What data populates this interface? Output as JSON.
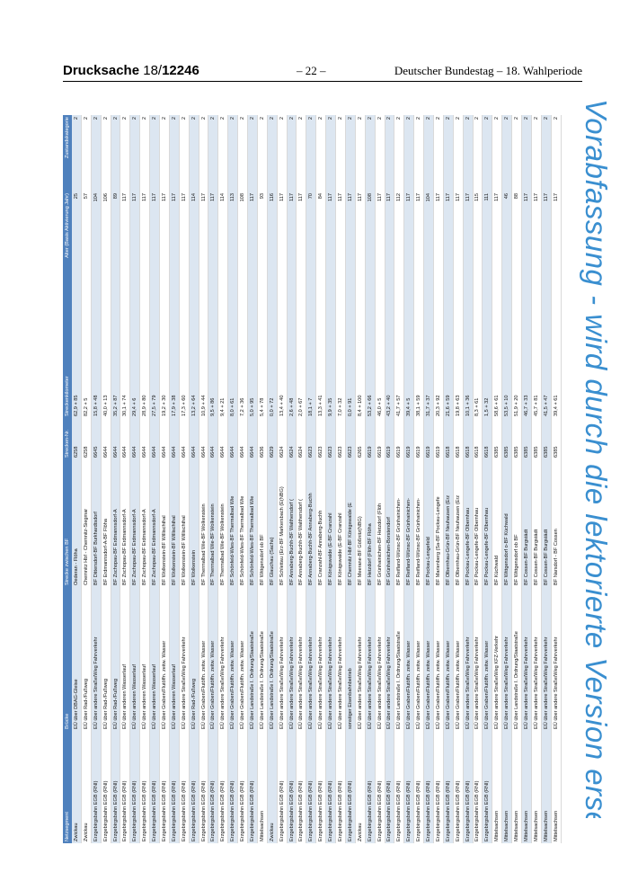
{
  "header": {
    "doc_label": "Drucksache",
    "doc_number_prefix": "18/",
    "doc_number": "12246",
    "page": "– 22 –",
    "institution": "Deutscher Bundestag – 18. Wahlperiode"
  },
  "watermark": "Vorabfassung - wird durch die lektorierte Version ersetzt.",
  "table": {
    "columns": [
      "Netzsegment",
      "Brücke",
      "Strecke zwischen BF",
      "Strecken-Nr.",
      "Streckenkilometer",
      "Alter (Basis Aktivierung Jahr)",
      "Zustandskategorie"
    ],
    "rows": [
      [
        "Zwickau",
        "EÜ über DBAG-Gleise",
        "Oederan - Flöha",
        "6258",
        "62,9 + 85",
        "25",
        "2"
      ],
      [
        "Zwickau",
        "EÜ über Rad-/Fußweg",
        "Chemnitz Hbf - Chemnitz-Siegmar",
        "6258",
        "82,2 + 5",
        "57",
        "2"
      ],
      [
        "Erzgebirgsbahn EGB (RNI)",
        "EÜ über andere Straße/Weg Fahrverkehr",
        "BF Dittersdorf-BF Burkhardtsdorf",
        "6645",
        "15,8 + 48",
        "104",
        "2"
      ],
      [
        "Erzgebirgsbahn EGB (RNI)",
        "EÜ über Rad-/Fußweg",
        "BF Erdmannsdorf-A-BF Flöha",
        "6644",
        "40,0 + 13",
        "106",
        "2"
      ],
      [
        "Erzgebirgsbahn EGB (RNI)",
        "EÜ über Rad-/Fußweg",
        "BF Zschopau-BF Erdmannsdorf-A",
        "6644",
        "35,2 + 87",
        "89",
        "2"
      ],
      [
        "Erzgebirgsbahn EGB (RNI)",
        "EÜ über anderen Wasserlauf",
        "BF Zschopau-BF Erdmannsdorf-A",
        "6644",
        "30,1 + 74",
        "117",
        "2"
      ],
      [
        "Erzgebirgsbahn EGB (RNI)",
        "EÜ über anderen Wasserlauf",
        "BF Zschopau-BF Erdmannsdorf-A",
        "6644",
        "29,4 + 6",
        "117",
        "2"
      ],
      [
        "Erzgebirgsbahn EGB (RNI)",
        "EÜ über anderen Wasserlauf",
        "BF Zschopau-BF Erdmannsdorf-A",
        "6644",
        "28,9 + 80",
        "117",
        "2"
      ],
      [
        "Erzgebirgsbahn EGB (RNI)",
        "EÜ über anderen Wasserlauf",
        "BF Zschopau-BF Erdmannsdorf-A",
        "6644",
        "27,5 + 79",
        "117",
        "2"
      ],
      [
        "Erzgebirgsbahn EGB (RNI)",
        "EÜ über Graben/Flutöffn. zeitw. Wasser",
        "BF Wolkenstein-BF Willischthal",
        "6644",
        "19,2 + 30",
        "117",
        "2"
      ],
      [
        "Erzgebirgsbahn EGB (RNI)",
        "EÜ über anderen Wasserlauf",
        "BF Wolkenstein-BF Willischthal",
        "6644",
        "17,9 + 38",
        "117",
        "2"
      ],
      [
        "Erzgebirgsbahn EGB (RNI)",
        "EÜ über andere Straße/Weg Fahrverkehr",
        "BF Wolkenstein-BF Willischthal",
        "6644",
        "17,3 + 60",
        "117",
        "2"
      ],
      [
        "Erzgebirgsbahn EGB (RNI)",
        "EÜ über Rad-/Fußweg",
        "BF Wolkenstein",
        "6644",
        "13,2 + 64",
        "114",
        "2"
      ],
      [
        "Erzgebirgsbahn EGB (RNI)",
        "EÜ über Graben/Flutöffn. zeitw. Wasser",
        "BF Thermalbad Wie-BF Wolkenstein",
        "6644",
        "10,9 + 44",
        "117",
        "2"
      ],
      [
        "Erzgebirgsbahn EGB (RNI)",
        "EÜ über Graben/Flutöffn. zeitw. Wasser",
        "BF Thermalbad Wie-BF Wolkenstein",
        "6644",
        "9,5 + 86",
        "117",
        "2"
      ],
      [
        "Erzgebirgsbahn EGB (RNI)",
        "EÜ über andere Straße/Weg Fahrverkehr",
        "BF Thermalbad Wie-BF Wolkenstein",
        "6644",
        "9,4 + 21",
        "114",
        "2"
      ],
      [
        "Erzgebirgsbahn EGB (RNI)",
        "EÜ über Graben/Flutöffn. zeitw. Wasser",
        "BF Schönfeld-Wies-BF Thermalbad Wie",
        "6644",
        "8,0 + 61",
        "113",
        "2"
      ],
      [
        "Erzgebirgsbahn EGB (RNI)",
        "EÜ über Graben/Flutöffn. zeitw. Wasser",
        "BF Schönfeld-Wies-BF Thermalbad Wie",
        "6644",
        "7,2 + 36",
        "108",
        "2"
      ],
      [
        "Erzgebirgsbahn EGB (RNI)",
        "EÜ über Landstraße I. Ordnung/Staatstraße",
        "BF Schönfeld-Wies-BF Thermalbad Wie",
        "6644",
        "5,0 + 95",
        "117",
        "2"
      ],
      [
        "Mittelsachsen",
        "EÜ über Landstraße I. Ordnung/Staatstraße",
        "BF Wittgensdorf ob BF",
        "6636",
        "5,4 + 78",
        "93",
        "2"
      ],
      [
        "Zwickau",
        "EÜ über Landstraße I. Ordnung/Staatstraße",
        "BF Glauchau (Sachs)",
        "6629",
        "0,0 + 72",
        "116",
        "2"
      ],
      [
        "Erzgebirgsbahn EGB (RNI)",
        "EÜ über andere Straße/Weg Fahrverkehr",
        "BF Schlettau (Erz-BF Markersbach (E(NBG)",
        "6624",
        "13,4 + 40",
        "117",
        "2"
      ],
      [
        "Erzgebirgsbahn EGB (RNI)",
        "EÜ über andere Straße/Weg Fahrverkehr",
        "BF Annaberg-Buchh-BF Walthersdorf (",
        "6624",
        "2,6 + 48",
        "117",
        "2"
      ],
      [
        "Erzgebirgsbahn EGB (RNI)",
        "EÜ über andere Straße/Weg Fahrverkehr",
        "BF Annaberg-Buchh-BF Walthersdorf (",
        "6624",
        "2,0 + 67",
        "117",
        "2"
      ],
      [
        "Erzgebirgsbahn EGB (RNI)",
        "EÜ über andere Straße/Weg Fahrverkehr",
        "BF Annaberg-Buchh-BF Annaberg-Buchh",
        "6623",
        "18,1 + 7",
        "70",
        "2"
      ],
      [
        "Erzgebirgsbahn EGB (RNI)",
        "EÜ über andere Straße/Weg Fahrverkehr",
        "BF Cranzahl-BF Annaberg-Buchh",
        "6623",
        "13,3 + 41",
        "84",
        "2"
      ],
      [
        "Erzgebirgsbahn EGB (RNI)",
        "EÜ über andere Straße/Weg Fahrverkehr",
        "BF Königswalde (E-BF Cranzahl",
        "6623",
        "9,9 + 35",
        "117",
        "2"
      ],
      [
        "Erzgebirgsbahn EGB (RNI)",
        "EÜ über andere Straße/Weg Fahrverkehr",
        "BF Königswalde (E-BF Cranzahl",
        "6623",
        "7,0 + 32",
        "117",
        "2"
      ],
      [
        "Erzgebirgsbahn EGB (RNI)",
        "sonstiger Eisenbahnbetrieb",
        "BF Chemnitz Hbf-BF Königswalde (E",
        "6623",
        "0,0 + 91",
        "117",
        "2"
      ],
      [
        "Zwickau",
        "EÜ über andere Straße/Weg Fahrverkehr",
        "BF Meerane-BF Gößnitz(NBG)",
        "6265",
        "8,4 + 100",
        "117",
        "2"
      ],
      [
        "Erzgebirgsbahn EGB (RNI)",
        "EÜ über andere Straße/Weg Fahrverkehr",
        "BF Hetzdorf (Flöh-BF Flöha",
        "6619",
        "53,2 + 66",
        "108",
        "2"
      ],
      [
        "Erzgebirgsbahn EGB (RNI)",
        "EÜ über andere Straße/Weg Fahrverkehr",
        "BF Grünhainichen-BF Hetzdorf (Flöh",
        "6619",
        "46,0 + 5",
        "117",
        "2"
      ],
      [
        "Erzgebirgsbahn EGB (RNI)",
        "EÜ über andere Straße/Weg Fahrverkehr",
        "BF Grünhainichen-Borstendorf",
        "6619",
        "43,2 + 40",
        "117",
        "2"
      ],
      [
        "Erzgebirgsbahn EGB (RNI)",
        "EÜ über Landstraße I. Ordnung/Staatstraße",
        "BF Reifland-Wünsc-BF Grünhainichen-",
        "6619",
        "41,7 + 57",
        "112",
        "2"
      ],
      [
        "Erzgebirgsbahn EGB (RNI)",
        "EÜ über Graben/Flutöffn. zeitw. Wasser",
        "BF Reifland-Wünsc-BF Grünhainichen-",
        "6619",
        "39,4 + 5",
        "117",
        "2"
      ],
      [
        "Erzgebirgsbahn EGB (RNI)",
        "EÜ über Graben/Flutöffn. zeitw. Wasser",
        "BF Reifland-Wünsc-BF Grünhainichen-",
        "6619",
        "38,1 + 59",
        "117",
        "2"
      ],
      [
        "Erzgebirgsbahn EGB (RNI)",
        "EÜ über Graben/Flutöffn. zeitw. Wasser",
        "BF Pockau-Lengefeld",
        "6619",
        "31,7 + 37",
        "104",
        "2"
      ],
      [
        "Erzgebirgsbahn EGB (RNI)",
        "EÜ über Graben/Flutöffn. zeitw. Wasser",
        "BF Marienberg (Sa-BF Pockau-Lengefe",
        "6619",
        "20,3 + 92",
        "117",
        "2"
      ],
      [
        "Erzgebirgsbahn EGB (RNI)",
        "EÜ über Graben/Flutöffn. zeitw. Wasser",
        "BF Olbernhau-Grün-BF Neuhausen (Erz",
        "6618",
        "21,6 + 59",
        "117",
        "2"
      ],
      [
        "Erzgebirgsbahn EGB (RNI)",
        "EÜ über Graben/Flutöffn. zeitw. Wasser",
        "BF Olbernhau-Grün-BF Neuhausen (Erz",
        "6618",
        "19,8 + 63",
        "117",
        "2"
      ],
      [
        "Erzgebirgsbahn EGB (RNI)",
        "EÜ über andere Straße/Weg Fahrverkehr",
        "BF Pockau-Lengefe-BF Olbernhau",
        "6618",
        "10,1 + 36",
        "117",
        "2"
      ],
      [
        "Erzgebirgsbahn EGB (RNI)",
        "EÜ über andere Straße/Weg Fahrverkehr",
        "BF Pockau-Lengefe-BF Olbernhau",
        "6618",
        "8,3 + 61",
        "115",
        "2"
      ],
      [
        "Erzgebirgsbahn EGB (RNI)",
        "EÜ über Graben/Flutöffn. zeitw. Wasser",
        "BF Pockau-Lengefe-BF Olbernhau",
        "6618",
        "1,5 + 32",
        "111",
        "2"
      ],
      [
        "Mittelsachsen",
        "EÜ über andere Straße/Weg KFZ-Verkehr",
        "BF Küchwald",
        "6385",
        "58,6 + 61",
        "117",
        "2"
      ],
      [
        "Mittelsachsen",
        "EÜ über andere Straße/Weg Fahrverkehr",
        "BF Wittgensdorf o-BF Küchwald",
        "6385",
        "53,5 + 10",
        "46",
        "2"
      ],
      [
        "Mittelsachsen",
        "EÜ über Landstraße I. Ordnung/Staatstraße",
        "BF Wittgensdorf ob BF",
        "6385",
        "51,9 + 20",
        "88",
        "2"
      ],
      [
        "Mittelsachsen",
        "EÜ über andere Straße/Weg Fahrverkehr",
        "BF Cossen-BF Burgstädt",
        "6385",
        "46,7 + 33",
        "117",
        "2"
      ],
      [
        "Mittelsachsen",
        "EÜ über andere Straße/Weg Fahrverkehr",
        "BF Cossen-BF Burgstädt",
        "6385",
        "45,7 + 81",
        "117",
        "2"
      ],
      [
        "Mittelsachsen",
        "EÜ über andere Straße/Weg Fahrverkehr",
        "BF Cossen-BF Burgstädt",
        "6385",
        "41,5 + 47",
        "117",
        "2"
      ],
      [
        "Mittelsachsen",
        "EÜ über andere Straße/Weg Fahrverkehr",
        "BF Narsdorf - BF Cossen",
        "6385",
        "39,4 + 61",
        "117",
        "2"
      ]
    ]
  }
}
